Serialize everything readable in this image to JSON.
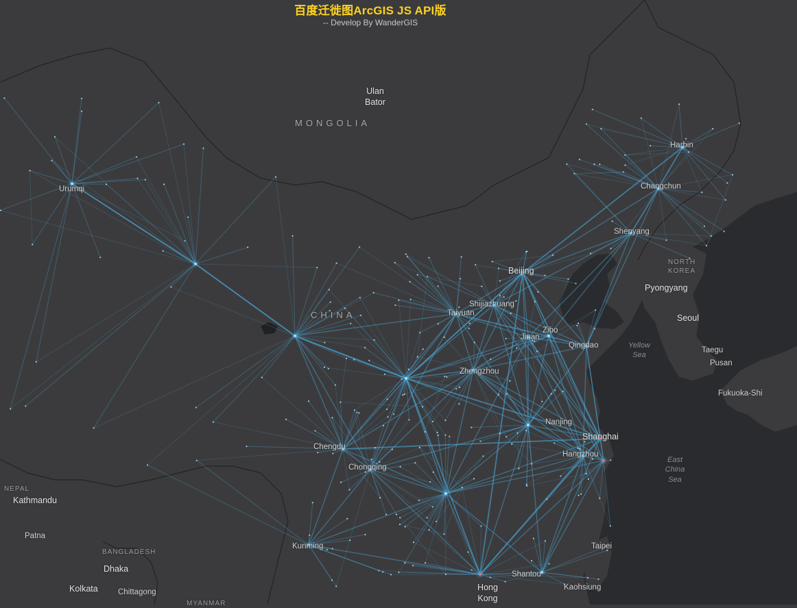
{
  "header": {
    "title": "百度迁徙图ArcGIS JS API版",
    "subtitle": "-- Develop By WanderGIS"
  },
  "map": {
    "colors": {
      "land": "#3b3b3d",
      "water": "#2a2b2e",
      "border": "#1f1f21",
      "flow": "#4aa6d8",
      "node": "#bfe6ff",
      "hotspot": "#ff6a6a"
    },
    "countries": [
      {
        "key": "mongolia",
        "text": "MONGOLIA"
      },
      {
        "key": "china",
        "text": "CHINA"
      },
      {
        "key": "north_korea",
        "text": "NORTH KOREA"
      },
      {
        "key": "nepal",
        "text": "NEPAL"
      },
      {
        "key": "bangladesh",
        "text": "BANGLADESH"
      },
      {
        "key": "myanmar",
        "text": "MYANMAR"
      }
    ],
    "cities": {
      "ulan_bator": "Ulan Bator",
      "urumqi": "Urumqi",
      "harbin": "Harbin",
      "changchun": "Changchun",
      "shenyang": "Shenyang",
      "beijing": "Beijing",
      "pyongyang": "Pyongyang",
      "seoul": "Seoul",
      "shijiazhuang": "Shijiazhuang",
      "taiyuan": "Taiyuan",
      "zibo": "Zibo",
      "jinan": "Jinan",
      "qingdao": "Qingdao",
      "taegu": "Taegu",
      "pusan": "Pusan",
      "fukuoka": "Fukuoka-Shi",
      "zhengzhou": "Zhengzhou",
      "nanjing": "Nanjing",
      "shanghai": "Shanghai",
      "hangzhou": "Hangzhou",
      "chengdu": "Chengdu",
      "chongqing": "Chongqing",
      "kathmandu": "Kathmandu",
      "patna": "Patna",
      "kunming": "Kunming",
      "taipei": "Taipei",
      "dhaka": "Dhaka",
      "shantou": "Shantou",
      "hong_kong": "Hong Kong",
      "kolkata": "Kolkata",
      "chittagong": "Chittagong",
      "kaohsiung": "Kaohsiung"
    },
    "seas": {
      "yellow_sea": "Yellow Sea",
      "east_china_sea": "East China Sea"
    }
  }
}
